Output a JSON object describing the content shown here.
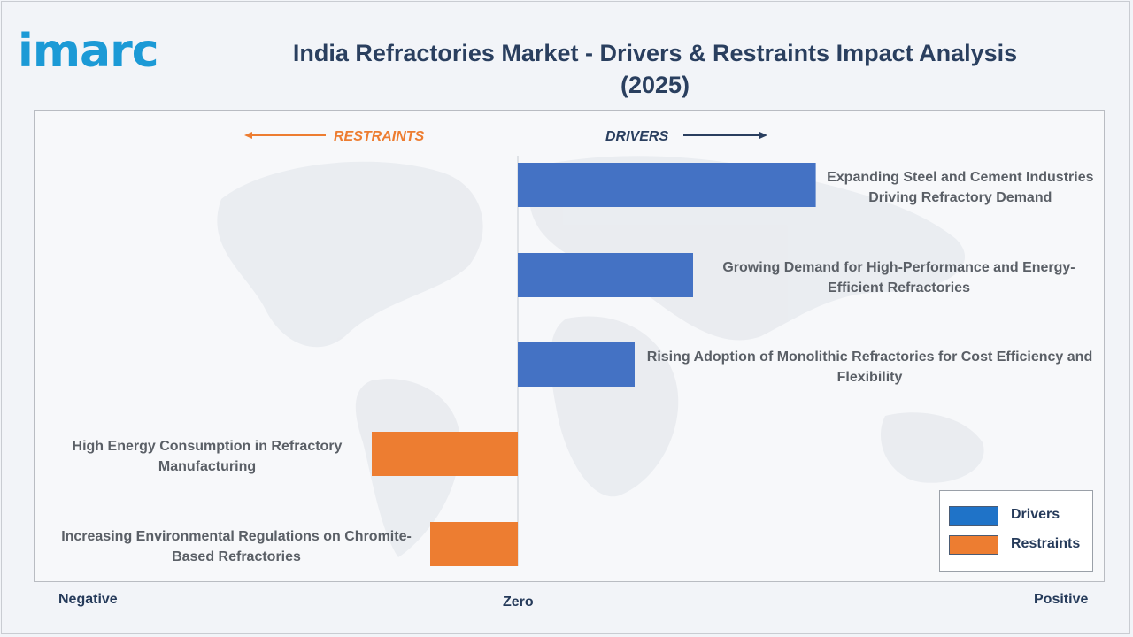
{
  "brand": {
    "logo_text": "imarc",
    "logo_color": "#1c9ad6"
  },
  "chart_data": {
    "type": "bar",
    "orientation": "horizontal",
    "title": "India Refractories Market - Drivers & Restraints Impact Analysis (2025)",
    "title_lines": [
      "India Refractories Market - Drivers & Restraints Impact Analysis",
      "(2025)"
    ],
    "direction_labels": {
      "restraints": "RESTRAINTS",
      "drivers": "DRIVERS"
    },
    "axis_labels": {
      "negative": "Negative",
      "zero": "Zero",
      "positive": "Positive"
    },
    "xlim": [
      -1,
      1
    ],
    "categories": [
      "Expanding Steel and Cement Industries Driving Refractory Demand",
      "Growing Demand for High-Performance and Energy-Efficient Refractories",
      "Rising Adoption of Monolithic Refractories for Cost Efficiency and Flexibility",
      "High Energy Consumption in Refractory Manufacturing",
      "Increasing Environmental Regulations on Chromite-Based Refractories"
    ],
    "bars": [
      {
        "label_lines": [
          "Expanding Steel and Cement Industries",
          "Driving Refractory Demand"
        ],
        "value": 0.51,
        "series": "Drivers"
      },
      {
        "label_lines": [
          "Growing Demand for High-Performance and Energy-",
          "Efficient Refractories"
        ],
        "value": 0.3,
        "series": "Drivers"
      },
      {
        "label_lines": [
          "Rising Adoption of Monolithic Refractories for Cost Efficiency and",
          "Flexibility"
        ],
        "value": 0.2,
        "series": "Drivers"
      },
      {
        "label_lines": [
          "High Energy Consumption in Refractory",
          "Manufacturing"
        ],
        "value": -0.25,
        "series": "Restraints"
      },
      {
        "label_lines": [
          "Increasing Environmental Regulations on Chromite-",
          "Based Refractories"
        ],
        "value": -0.15,
        "series": "Restraints"
      }
    ],
    "series": [
      {
        "name": "Drivers",
        "color": "#4472c4"
      },
      {
        "name": "Restraints",
        "color": "#ed7d31"
      }
    ],
    "legend": {
      "position": "bottom-right"
    },
    "colors": {
      "drivers": "#4472c4",
      "restraints": "#ed7d31",
      "legend_drivers": "#1f73c8",
      "direction_restraints": "#ed7d31",
      "direction_drivers": "#2a3f5f",
      "label_text": "#5a5f66"
    }
  }
}
